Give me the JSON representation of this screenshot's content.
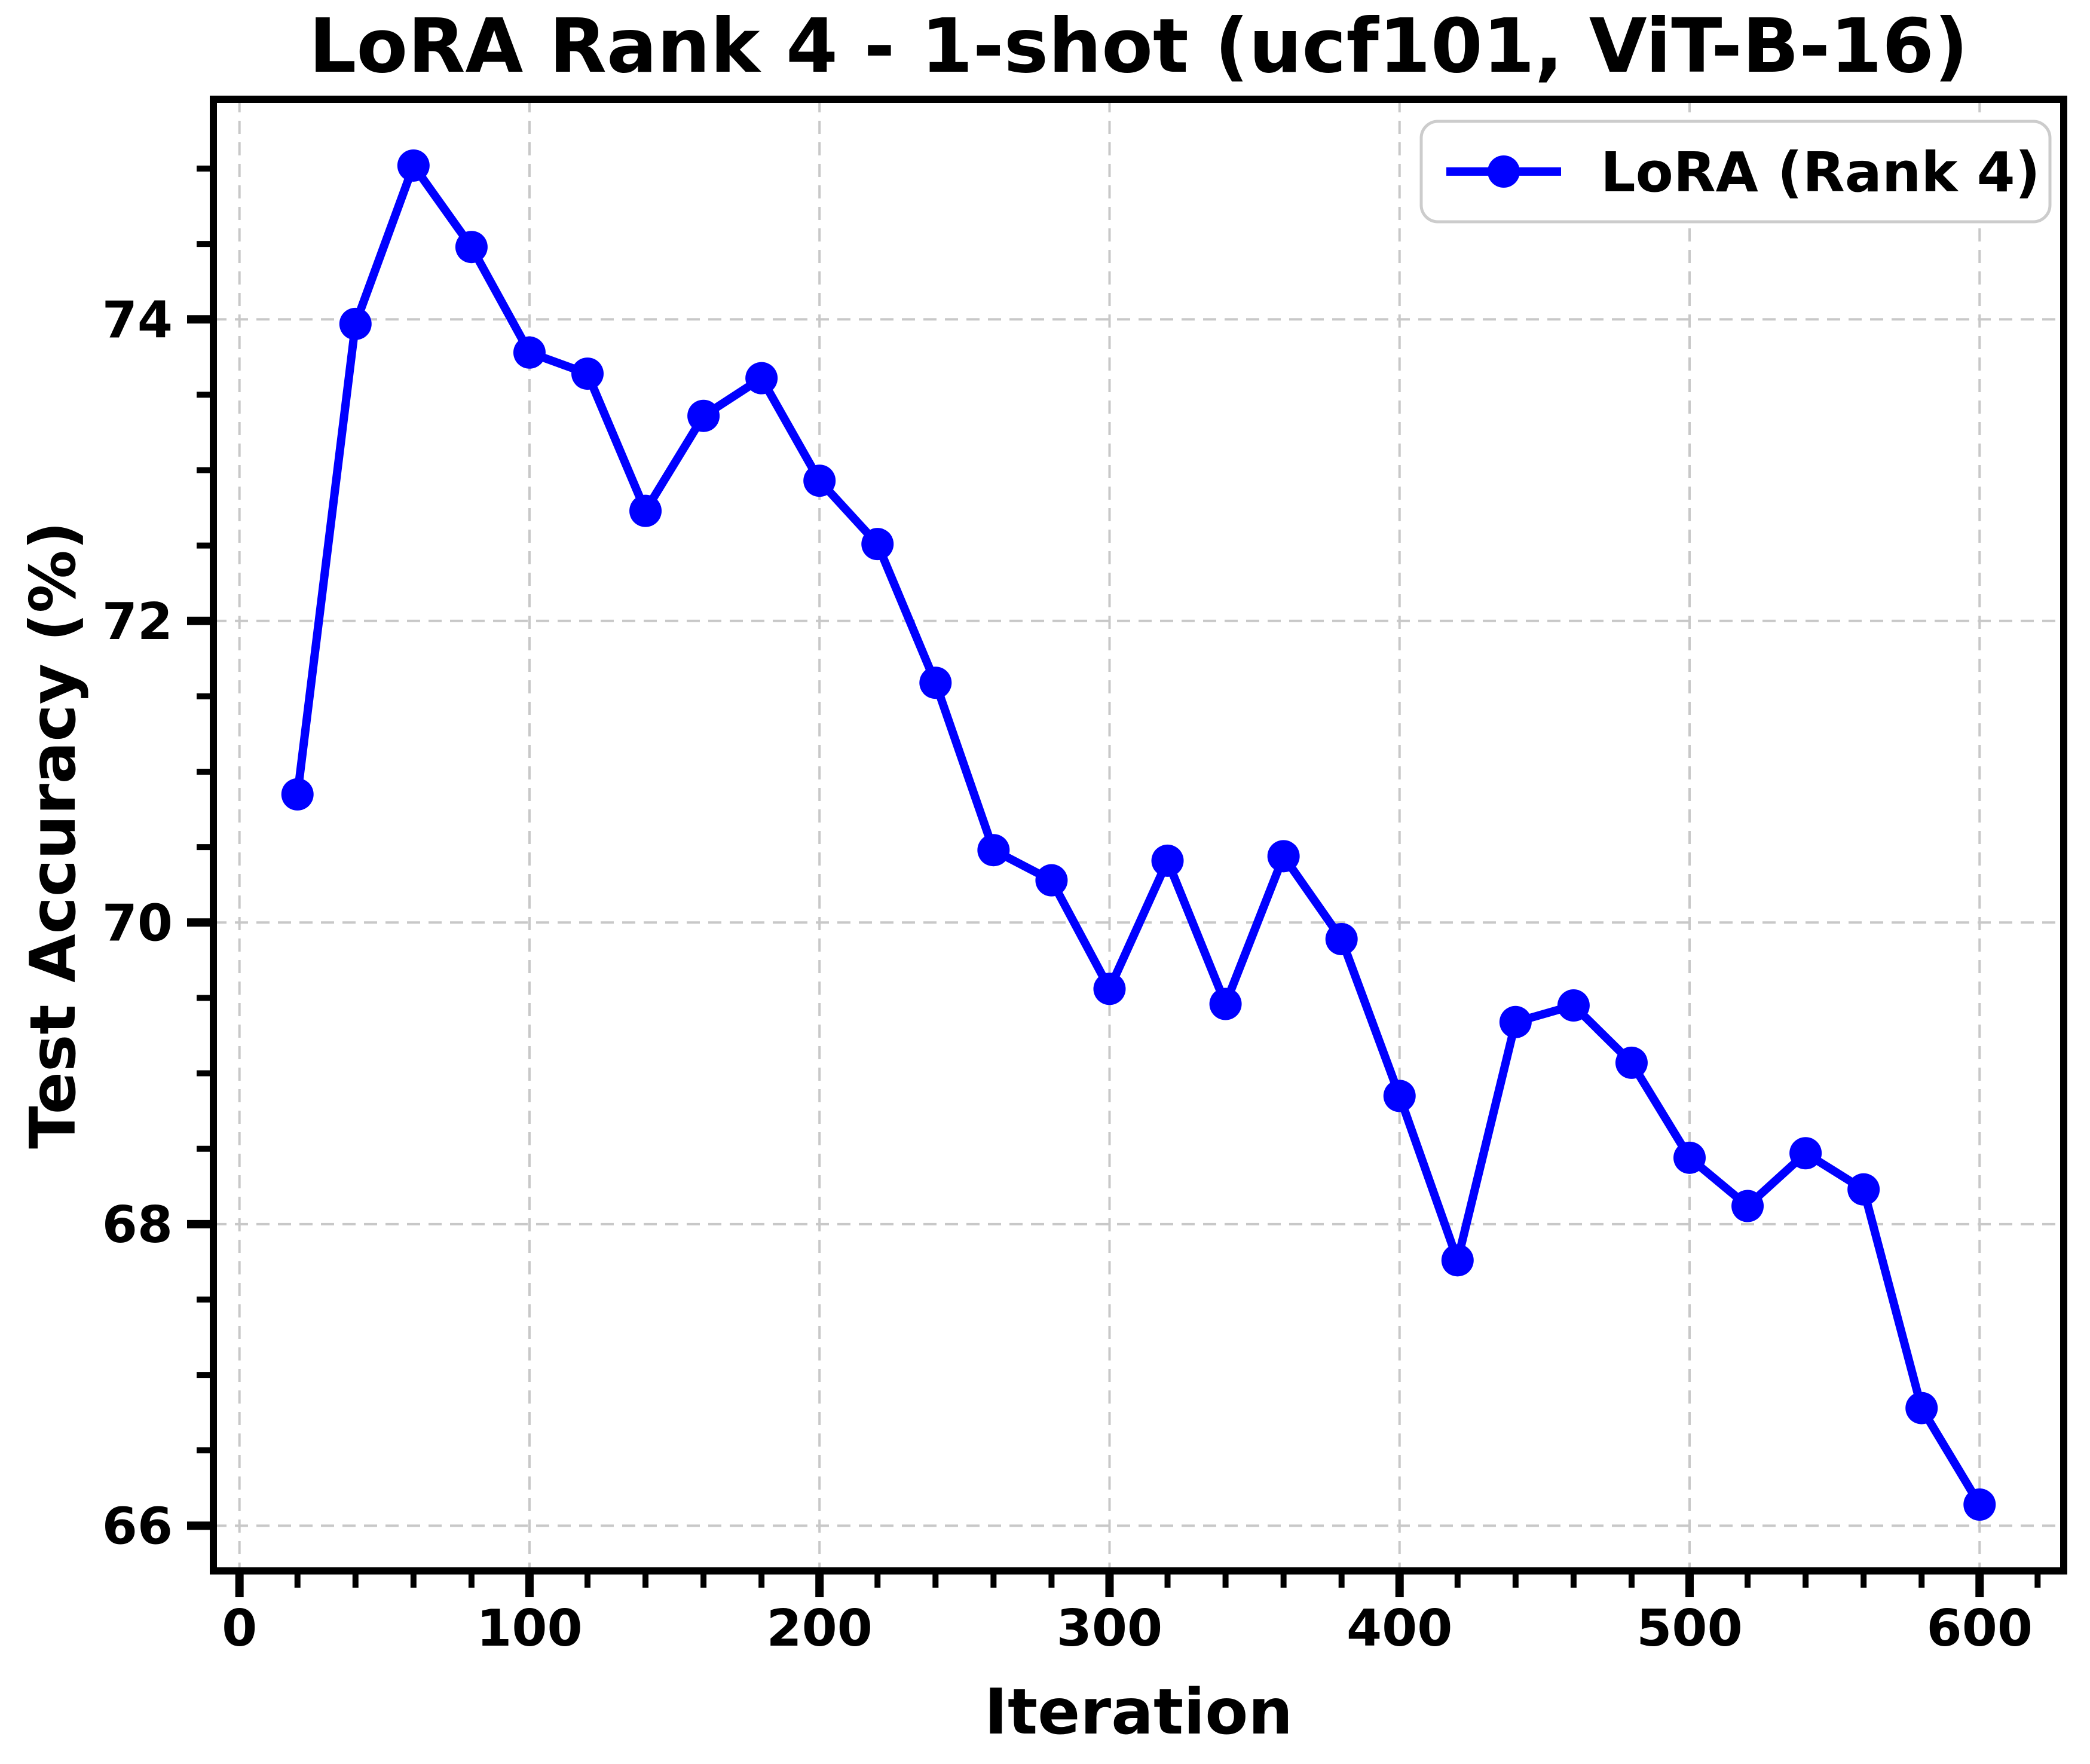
{
  "chart_data": {
    "type": "line",
    "title": "LoRA Rank 4 - 1-shot (ucf101, ViT-B-16)",
    "xlabel": "Iteration",
    "ylabel": "Test Accuracy (%)",
    "x": [
      20,
      40,
      60,
      80,
      100,
      120,
      140,
      160,
      180,
      200,
      220,
      240,
      260,
      280,
      300,
      320,
      340,
      360,
      380,
      400,
      420,
      440,
      460,
      480,
      500,
      520,
      540,
      560,
      580,
      600
    ],
    "series": [
      {
        "name": "LoRA (Rank 4)",
        "values": [
          70.85,
          73.97,
          75.02,
          74.48,
          73.78,
          73.64,
          72.73,
          73.36,
          73.61,
          72.93,
          72.51,
          71.59,
          70.48,
          70.28,
          69.56,
          70.41,
          69.46,
          70.44,
          69.89,
          68.85,
          67.76,
          69.34,
          69.45,
          69.07,
          68.44,
          68.12,
          68.47,
          68.23,
          66.78,
          66.14
        ],
        "color": "#0000ff"
      }
    ],
    "xlim": [
      -9,
      629
    ],
    "ylim": [
      65.7,
      75.46
    ],
    "xticks": [
      0,
      100,
      200,
      300,
      400,
      500,
      600
    ],
    "yticks": [
      66,
      68,
      70,
      72,
      74
    ],
    "x_minor_step": 20,
    "y_minor_step": 0.5,
    "grid": true,
    "grid_color": "#c8c8c8",
    "spine_color": "#000000",
    "background_color": "#ffffff",
    "legend_position": "upper right",
    "legend_border_color": "#cccccc",
    "marker": "circle"
  }
}
